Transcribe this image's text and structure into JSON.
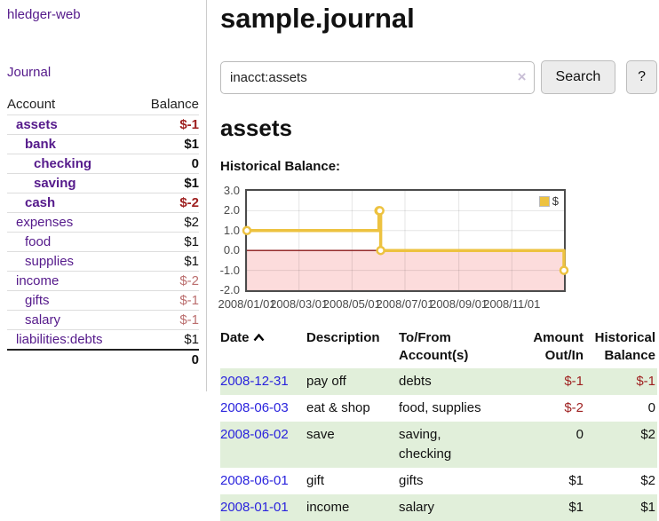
{
  "app": {
    "title": "hledger-web"
  },
  "sidebar": {
    "nav_journal": "Journal",
    "accounts": {
      "headers": {
        "account": "Account",
        "balance": "Balance"
      },
      "rows": [
        {
          "name": "assets",
          "balance": "$-1",
          "name_class": "lvl1 b",
          "balance_class": "b neg"
        },
        {
          "name": "bank",
          "balance": "$1",
          "name_class": "lvl2 b",
          "balance_class": "b"
        },
        {
          "name": "checking",
          "balance": "0",
          "name_class": "lvl3 b",
          "balance_class": "b"
        },
        {
          "name": "saving",
          "balance": "$1",
          "name_class": "lvl3 b",
          "balance_class": "b"
        },
        {
          "name": "cash",
          "balance": "$-2",
          "name_class": "lvl2 b",
          "balance_class": "b neg"
        },
        {
          "name": "expenses",
          "balance": "$2",
          "name_class": "lvl1",
          "balance_class": ""
        },
        {
          "name": "food",
          "balance": "$1",
          "name_class": "lvl2",
          "balance_class": ""
        },
        {
          "name": "supplies",
          "balance": "$1",
          "name_class": "lvl2",
          "balance_class": ""
        },
        {
          "name": "income",
          "balance": "$-2",
          "name_class": "lvl1",
          "balance_class": "neg-light"
        },
        {
          "name": "gifts",
          "balance": "$-1",
          "name_class": "lvl2",
          "balance_class": "neg-light"
        },
        {
          "name": "salary",
          "balance": "$-1",
          "name_class": "lvl2",
          "balance_class": "neg-light",
          "link_class": "blue"
        },
        {
          "name": "liabilities:debts",
          "balance": "$1",
          "name_class": "lvl1",
          "balance_class": ""
        }
      ],
      "total": "0"
    }
  },
  "main": {
    "title": "sample.journal",
    "search": {
      "value": "inacct:assets",
      "clear_icon": "×",
      "button_label": "Search",
      "help_label": "?"
    },
    "account_heading": "assets",
    "chart_section_label": "Historical Balance:"
  },
  "chart_data": {
    "type": "line",
    "subtype": "step-after",
    "title": "Historical Balance",
    "xlim": [
      "2008-01-01",
      "2008-12-31"
    ],
    "ylim": [
      -2.0,
      3.0
    ],
    "grid": true,
    "legend_position": "top-right",
    "negative_region_color": "#fcdcdc",
    "zero_line_color": "#8b1a1a",
    "y_ticks": [
      {
        "label": "3.0",
        "value": 3.0
      },
      {
        "label": "2.0",
        "value": 2.0
      },
      {
        "label": "1.0",
        "value": 1.0
      },
      {
        "label": "0.0",
        "value": 0.0
      },
      {
        "label": "-1.0",
        "value": -1.0
      },
      {
        "label": "-2.0",
        "value": -2.0
      }
    ],
    "x_ticks": [
      {
        "label": "2008/01/01",
        "date": "2008-01-01"
      },
      {
        "label": "2008/03/01",
        "date": "2008-03-01"
      },
      {
        "label": "2008/05/01",
        "date": "2008-05-01"
      },
      {
        "label": "2008/07/01",
        "date": "2008-07-01"
      },
      {
        "label": "2008/09/01",
        "date": "2008-09-01"
      },
      {
        "label": "2008/11/01",
        "date": "2008-11-01"
      }
    ],
    "series": [
      {
        "name": "$",
        "color": "#edc240",
        "points": [
          {
            "date": "2008-01-01",
            "value": 1.0
          },
          {
            "date": "2008-06-01",
            "value": 2.0
          },
          {
            "date": "2008-06-02",
            "value": 2.0
          },
          {
            "date": "2008-06-03",
            "value": 0.0
          },
          {
            "date": "2008-12-31",
            "value": -1.0
          }
        ]
      }
    ]
  },
  "register": {
    "headers": {
      "date": "Date",
      "description": "Description",
      "accounts": "To/From Account(s)",
      "amount": "Amount Out/In",
      "balance": "Historical Balance"
    },
    "rows": [
      {
        "date": "2008-12-31",
        "description": "pay off",
        "accounts": "debts",
        "amount": "$-1",
        "balance": "$-1",
        "amount_class": "neg",
        "balance_class": "neg"
      },
      {
        "date": "2008-06-03",
        "description": "eat & shop",
        "accounts": "food, supplies",
        "amount": "$-2",
        "balance": "0",
        "amount_class": "neg",
        "balance_class": ""
      },
      {
        "date": "2008-06-02",
        "description": "save",
        "accounts": "saving, checking",
        "amount": "0",
        "balance": "$2",
        "amount_class": "",
        "balance_class": ""
      },
      {
        "date": "2008-06-01",
        "description": "gift",
        "accounts": "gifts",
        "amount": "$1",
        "balance": "$2",
        "amount_class": "",
        "balance_class": ""
      },
      {
        "date": "2008-01-01",
        "description": "income",
        "accounts": "salary",
        "amount": "$1",
        "balance": "$1",
        "amount_class": "",
        "balance_class": ""
      }
    ]
  }
}
